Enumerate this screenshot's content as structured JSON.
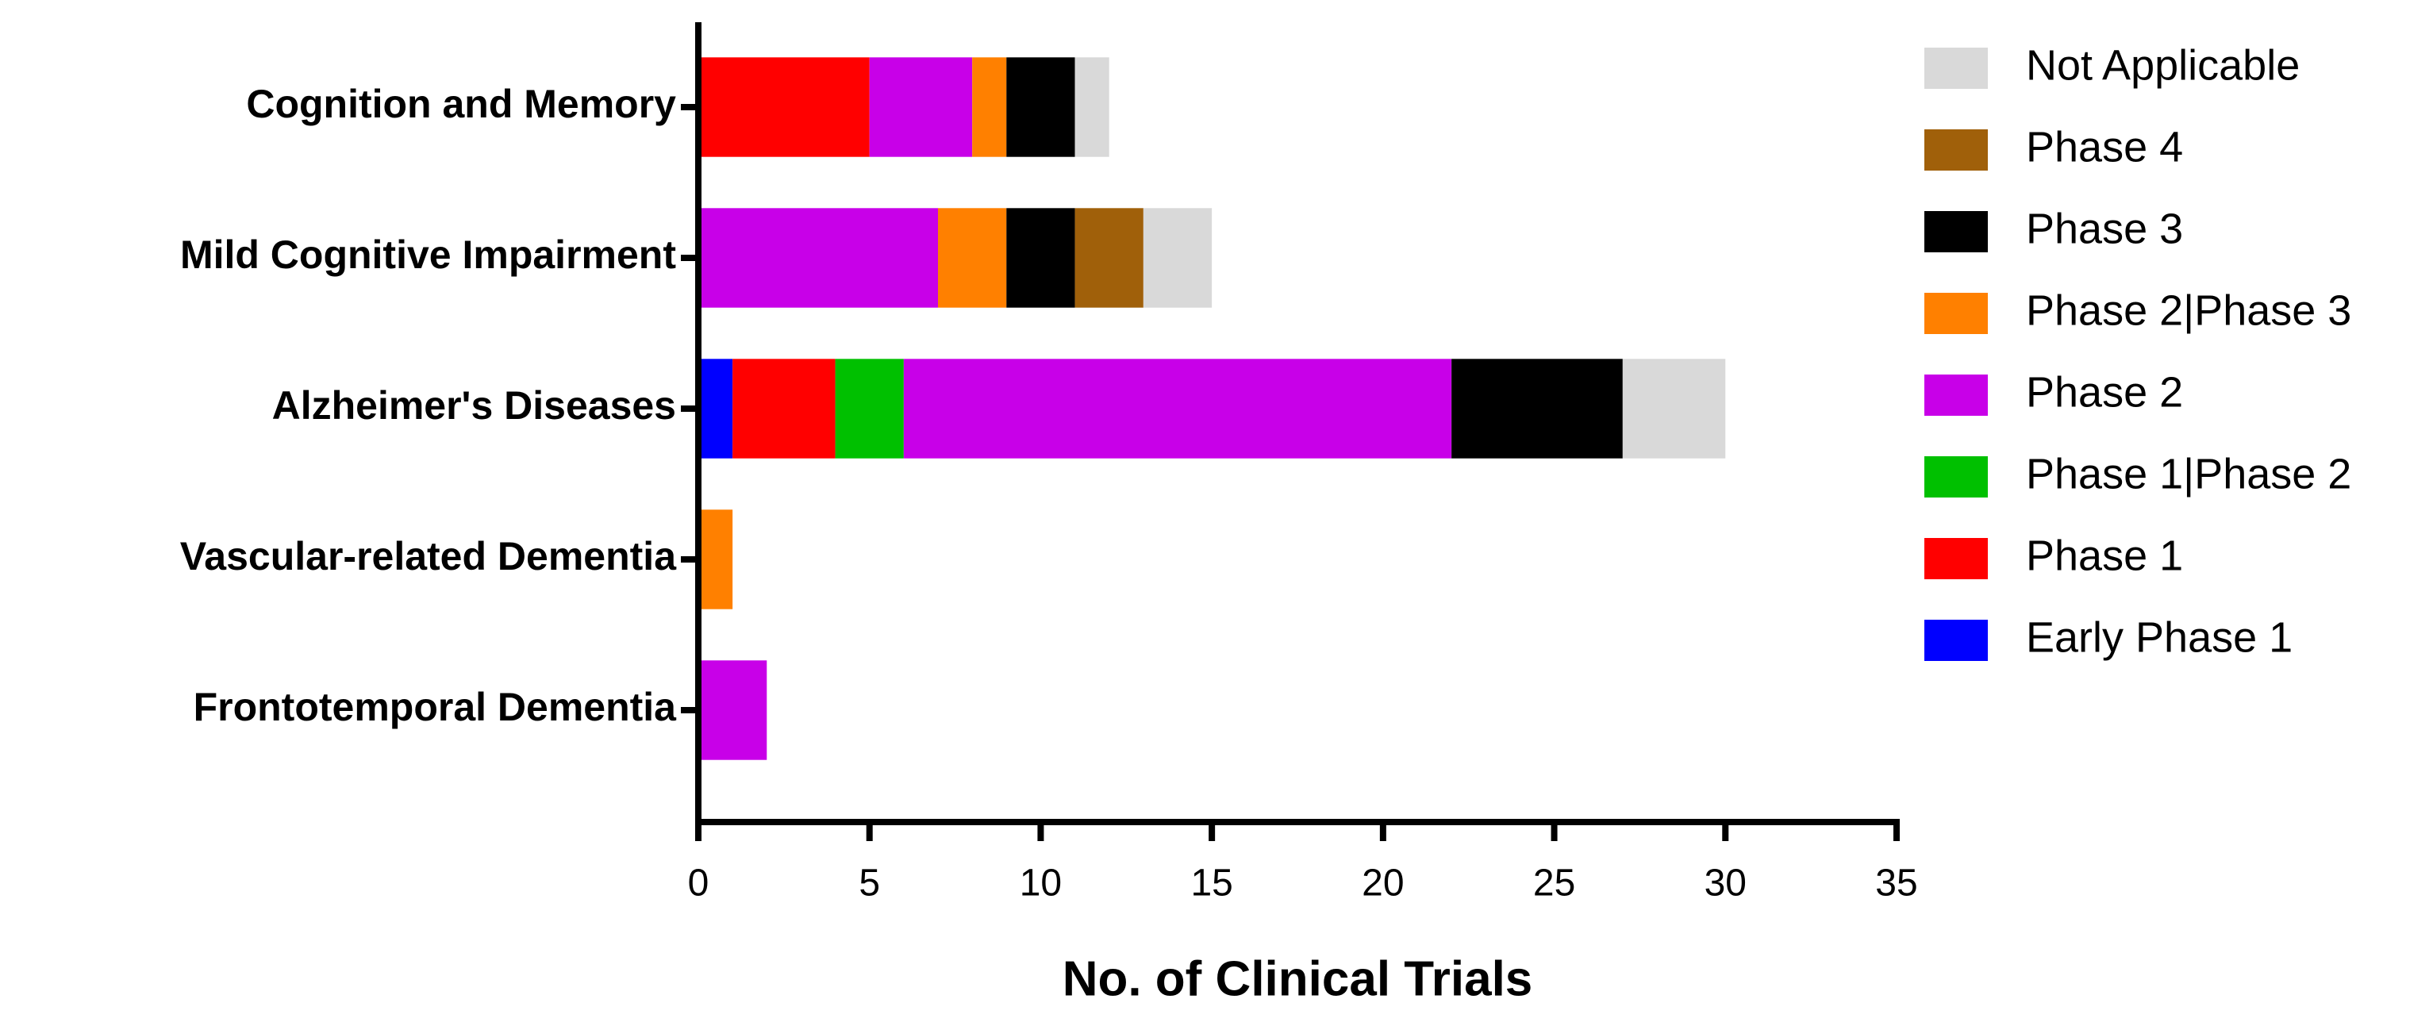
{
  "chart_data": {
    "type": "stacked_barh",
    "xlabel": "No. of Clinical Trials",
    "categories": [
      "Cognition and Memory",
      "Mild Cognitive Impairment",
      "Alzheimer's Diseases",
      "Vascular-related Dementia",
      "Frontotemporal Dementia"
    ],
    "series": [
      {
        "name": "Early Phase 1",
        "color": "#0000ff",
        "values": [
          0,
          0,
          1,
          0,
          0
        ]
      },
      {
        "name": "Phase 1",
        "color": "#ff0000",
        "values": [
          5,
          0,
          3,
          0,
          0
        ]
      },
      {
        "name": "Phase 1|Phase 2",
        "color": "#00c000",
        "values": [
          0,
          0,
          2,
          0,
          0
        ]
      },
      {
        "name": "Phase 2",
        "color": "#c800e8",
        "values": [
          3,
          7,
          16,
          0,
          2
        ]
      },
      {
        "name": "Phase 2|Phase 3",
        "color": "#ff8000",
        "values": [
          1,
          2,
          0,
          1,
          0
        ]
      },
      {
        "name": "Phase 3",
        "color": "#000000",
        "values": [
          2,
          2,
          5,
          0,
          0
        ]
      },
      {
        "name": "Phase 4",
        "color": "#a0600a",
        "values": [
          0,
          2,
          0,
          0,
          0
        ]
      },
      {
        "name": "Not Applicable",
        "color": "#d9d9d9",
        "values": [
          1,
          2,
          3,
          0,
          0
        ]
      }
    ],
    "xlim": [
      0,
      35
    ],
    "xticks": [
      0,
      5,
      10,
      15,
      20,
      25,
      30,
      35
    ],
    "legend": "right"
  }
}
